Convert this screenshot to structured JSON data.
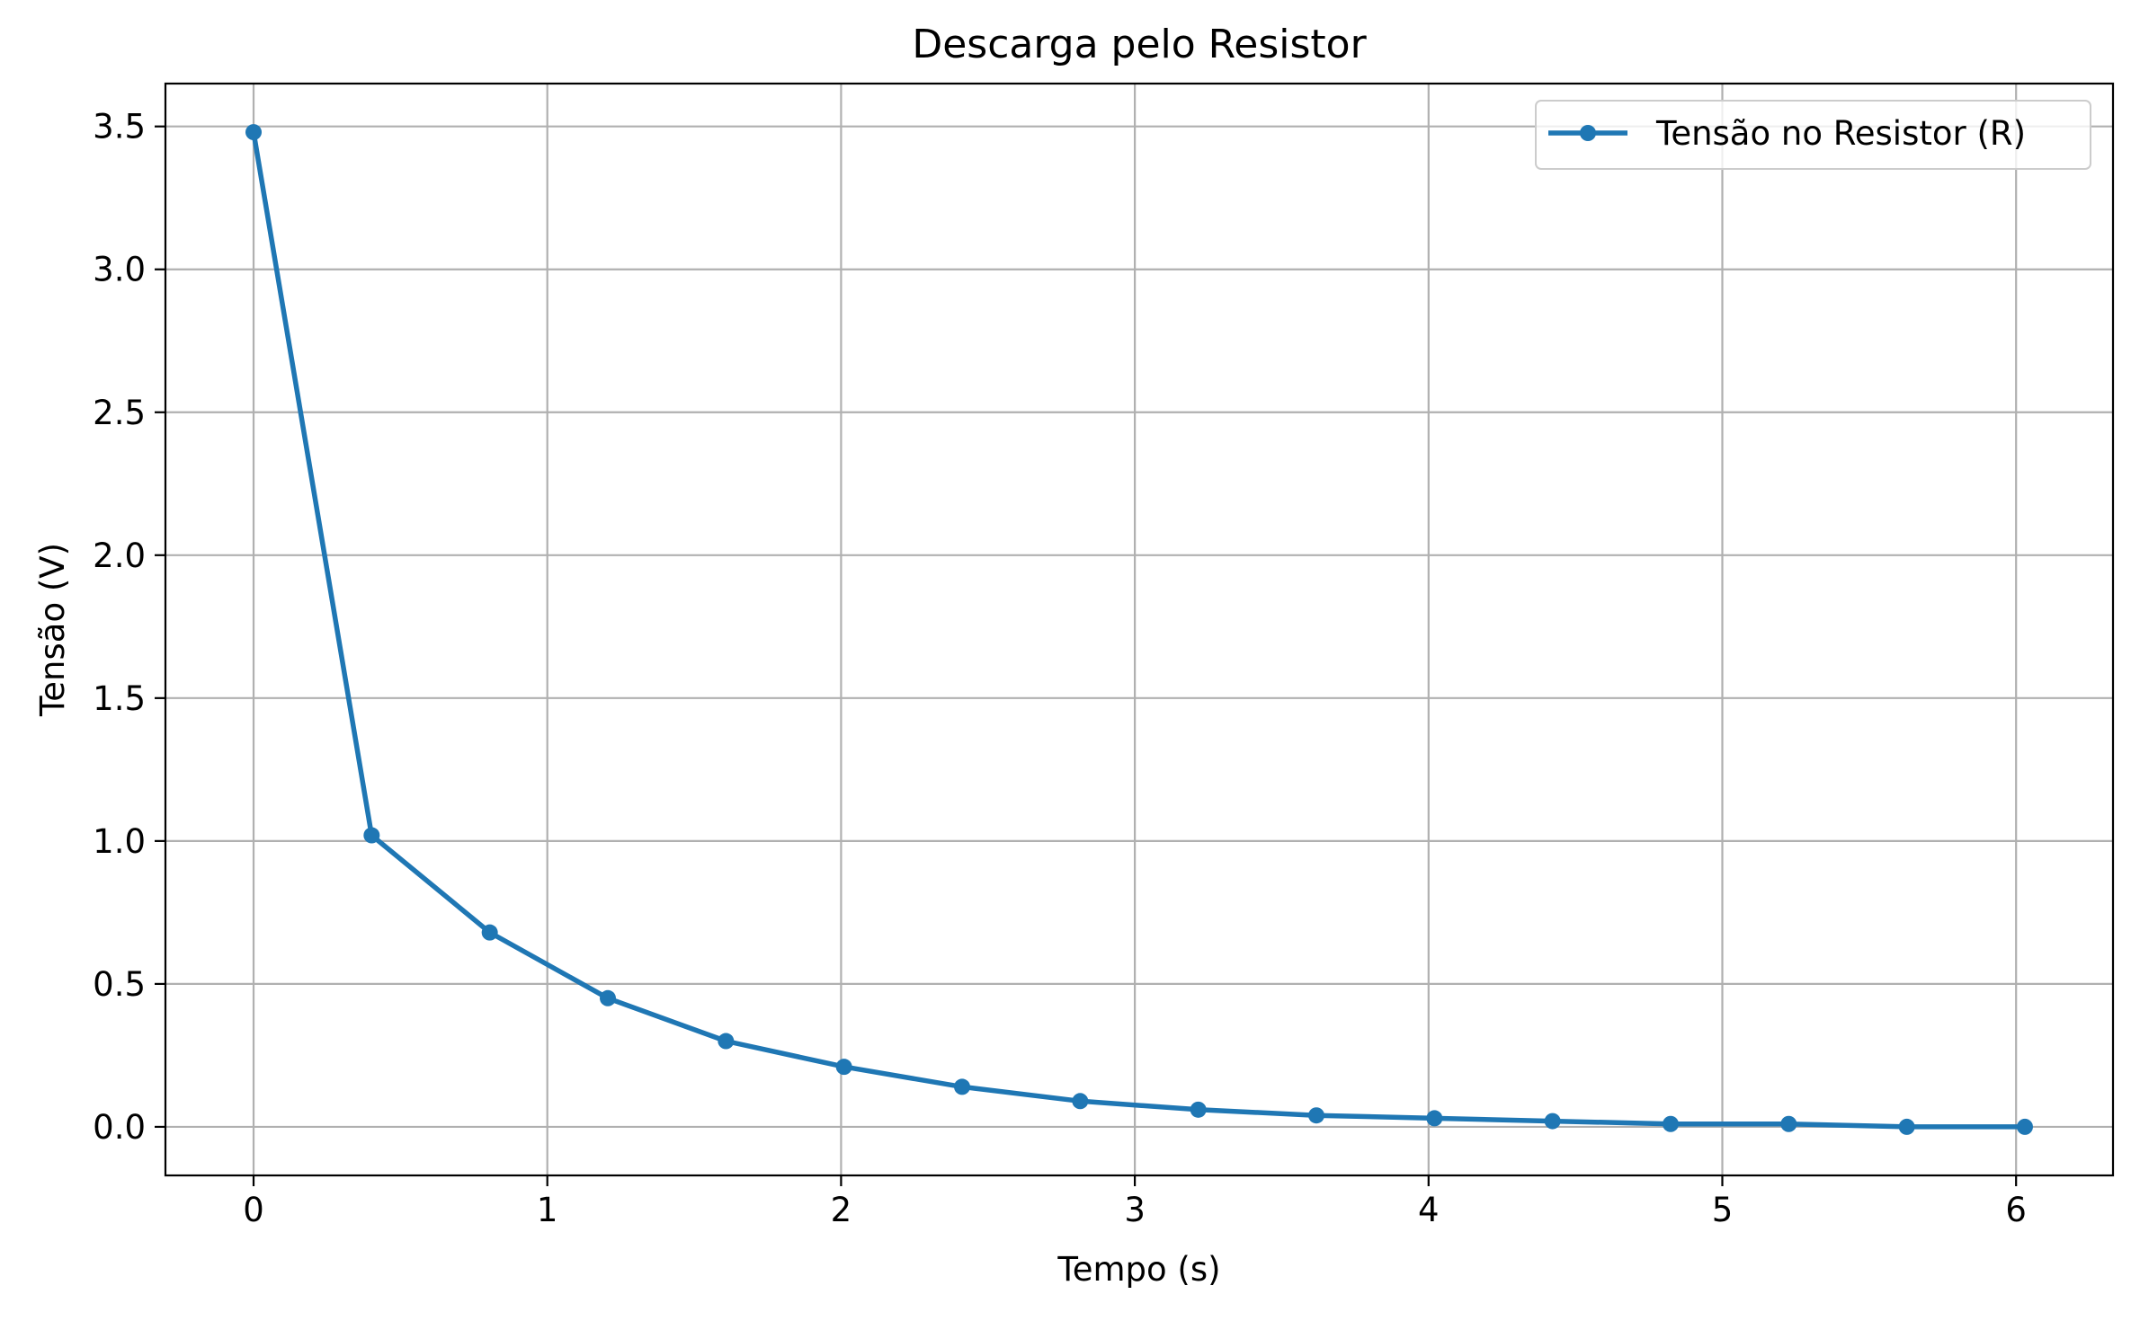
{
  "chart_data": {
    "type": "line",
    "title": "Descarga pelo Resistor",
    "xlabel": "Tempo (s)",
    "ylabel": "Tensão (V)",
    "xlim": [
      -0.3,
      6.33
    ],
    "ylim": [
      -0.17,
      3.65
    ],
    "x_ticks": [
      0,
      1,
      2,
      3,
      4,
      5,
      6
    ],
    "x_tick_labels": [
      "0",
      "1",
      "2",
      "3",
      "4",
      "5",
      "6"
    ],
    "y_ticks": [
      0.0,
      0.5,
      1.0,
      1.5,
      2.0,
      2.5,
      3.0,
      3.5
    ],
    "y_tick_labels": [
      "0.0",
      "0.5",
      "1.0",
      "1.5",
      "2.0",
      "2.5",
      "3.0",
      "3.5"
    ],
    "grid": true,
    "legend_position": "top-right",
    "series": [
      {
        "name": "Tensão no Resistor (R)",
        "color": "#1f77b4",
        "marker": "circle",
        "x": [
          0.0,
          0.402,
          0.804,
          1.206,
          1.608,
          2.01,
          2.412,
          2.814,
          3.216,
          3.618,
          4.02,
          4.422,
          4.824,
          5.226,
          5.628,
          6.03
        ],
        "y": [
          3.48,
          1.02,
          0.68,
          0.45,
          0.3,
          0.21,
          0.14,
          0.09,
          0.06,
          0.04,
          0.03,
          0.02,
          0.01,
          0.01,
          0.0,
          0.0
        ]
      }
    ]
  }
}
